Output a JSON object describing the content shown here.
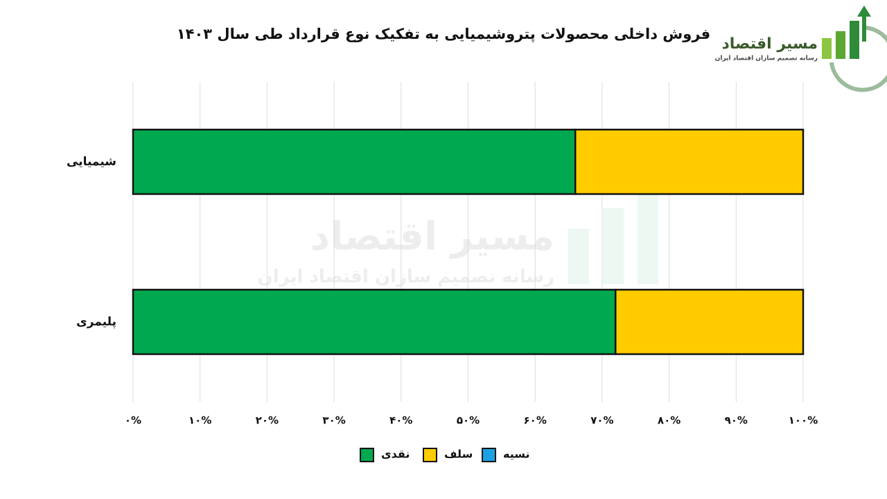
{
  "chart_data": {
    "type": "stacked-bar-horizontal",
    "title": "فروش داخلی محصولات پتروشیمیایی به تفکیک نوع قرارداد طی سال ۱۴۰۳",
    "logo": {
      "name": "مسیر اقتصاد",
      "tagline": "رسانه تصمیم سازان اقتصاد ایران"
    },
    "categories": [
      "شیمیایی",
      "پلیمری"
    ],
    "series": [
      {
        "name": "نقدی",
        "color": "#00a94f",
        "values": [
          66,
          72
        ]
      },
      {
        "name": "سلف",
        "color": "#ffcc00",
        "values": [
          34,
          28
        ]
      },
      {
        "name": "نسیه",
        "color": "#1ba1e2",
        "values": [
          0,
          0
        ]
      }
    ],
    "xlim": [
      0,
      100
    ],
    "xticks": [
      {
        "value": 0,
        "label": "۰%"
      },
      {
        "value": 10,
        "label": "۱۰%"
      },
      {
        "value": 20,
        "label": "۲۰%"
      },
      {
        "value": 30,
        "label": "۳۰%"
      },
      {
        "value": 40,
        "label": "۴۰%"
      },
      {
        "value": 50,
        "label": "۵۰%"
      },
      {
        "value": 60,
        "label": "۶۰%"
      },
      {
        "value": 70,
        "label": "۷۰%"
      },
      {
        "value": 80,
        "label": "۸۰%"
      },
      {
        "value": 90,
        "label": "۹۰%"
      },
      {
        "value": 100,
        "label": "۱۰۰%"
      }
    ],
    "grid": true,
    "legend": "bottom"
  }
}
